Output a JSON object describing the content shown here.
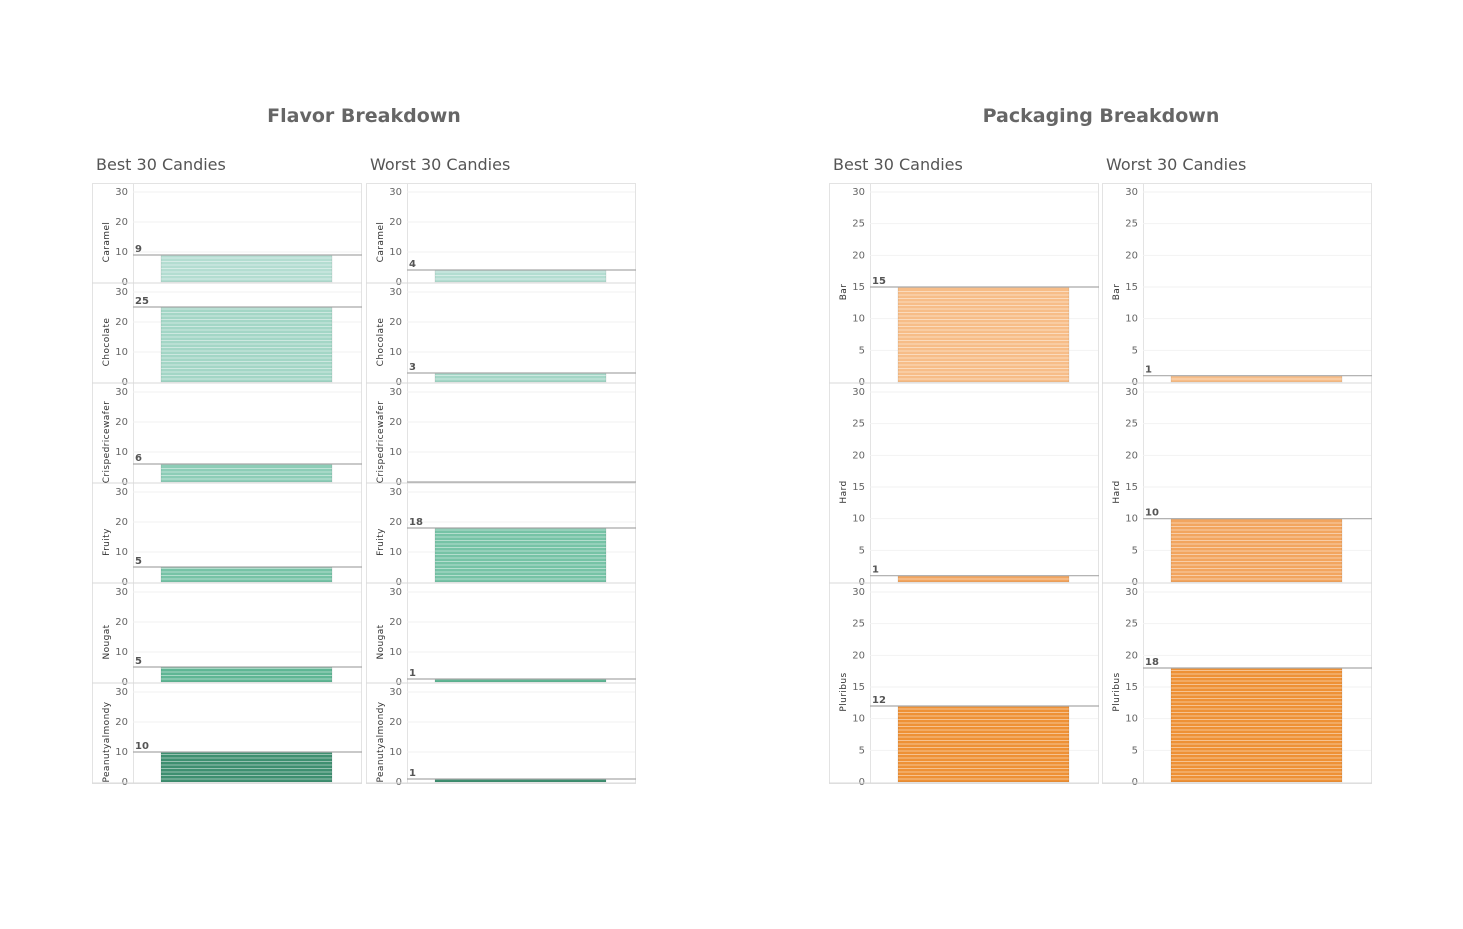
{
  "dashboards": [
    {
      "id": "flavor",
      "title": "Flavor Breakdown",
      "yticks": [
        0,
        10,
        20,
        30
      ],
      "ymax": 30,
      "colors": [
        "#b3ddd1",
        "#a3d6c6",
        "#8dcdb7",
        "#76c3a6",
        "#5fb694",
        "#3e8f70"
      ],
      "categories": [
        "Caramel",
        "Chocolate",
        "Crispedricewafer",
        "Fruity",
        "Nougat",
        "Peanutyalmondy"
      ],
      "columns": [
        {
          "title": "Best 30 Candies",
          "values": [
            9,
            25,
            6,
            5,
            5,
            10
          ],
          "labels": [
            "9",
            "25",
            "6",
            "5",
            "5",
            "10"
          ]
        },
        {
          "title": "Worst 30 Candies",
          "values": [
            4,
            3,
            0,
            18,
            1,
            1
          ],
          "labels": [
            "4",
            "3",
            "",
            "18",
            "1",
            "1"
          ]
        }
      ]
    },
    {
      "id": "packaging",
      "title": "Packaging Breakdown",
      "yticks": [
        0,
        5,
        10,
        15,
        20,
        25,
        30
      ],
      "ymax": 30,
      "colors": [
        "#f7bd88",
        "#f2a55f",
        "#ee9136"
      ],
      "categories": [
        "Bar",
        "Hard",
        "Pluribus"
      ],
      "columns": [
        {
          "title": "Best 30 Candies",
          "values": [
            15,
            1,
            12
          ],
          "labels": [
            "15",
            "1",
            "12"
          ]
        },
        {
          "title": "Worst 30 Candies",
          "values": [
            1,
            10,
            18
          ],
          "labels": [
            "1",
            "10",
            "18"
          ]
        }
      ]
    }
  ]
}
